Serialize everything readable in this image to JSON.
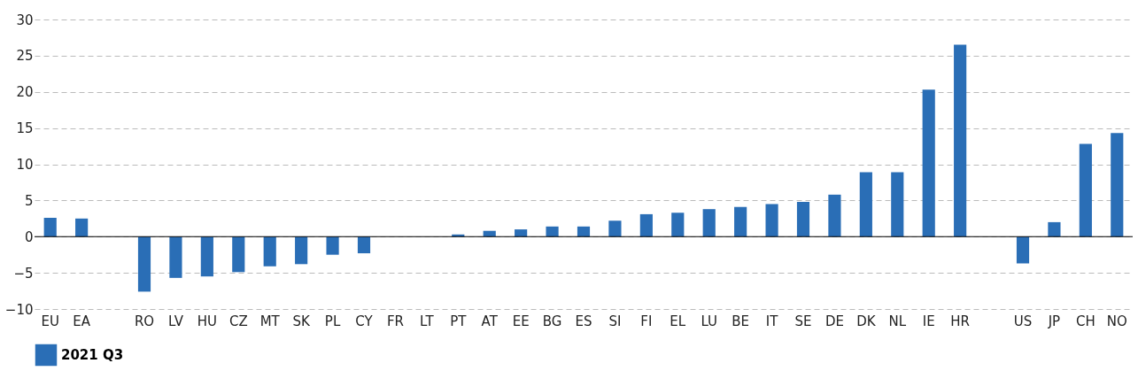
{
  "chart_data": {
    "type": "bar",
    "categories": [
      "EU",
      "EA",
      null,
      "RO",
      "LV",
      "HU",
      "CZ",
      "MT",
      "SK",
      "PL",
      "CY",
      "FR",
      "LT",
      "PT",
      "AT",
      "EE",
      "BG",
      "ES",
      "SI",
      "FI",
      "EL",
      "LU",
      "BE",
      "IT",
      "SE",
      "DE",
      "DK",
      "NL",
      "IE",
      "HR",
      null,
      "US",
      "JP",
      "CH",
      "NO"
    ],
    "series": [
      {
        "name": "2021 Q3",
        "color": "#2a6eb6",
        "values": [
          2.6,
          2.5,
          null,
          -7.6,
          -5.7,
          -5.5,
          -4.9,
          -4.1,
          -3.8,
          -2.5,
          -2.3,
          0,
          0,
          0.3,
          0.8,
          1.0,
          1.4,
          1.4,
          2.2,
          3.1,
          3.3,
          3.8,
          4.1,
          4.5,
          4.8,
          5.8,
          8.9,
          8.9,
          20.3,
          26.5,
          null,
          -3.7,
          2.0,
          12.8,
          14.3
        ]
      }
    ],
    "ylim": [
      -10,
      30
    ],
    "yticks": [
      -10,
      -5,
      0,
      5,
      10,
      15,
      20,
      25,
      30
    ],
    "grid": "y",
    "legend": "bottom"
  }
}
